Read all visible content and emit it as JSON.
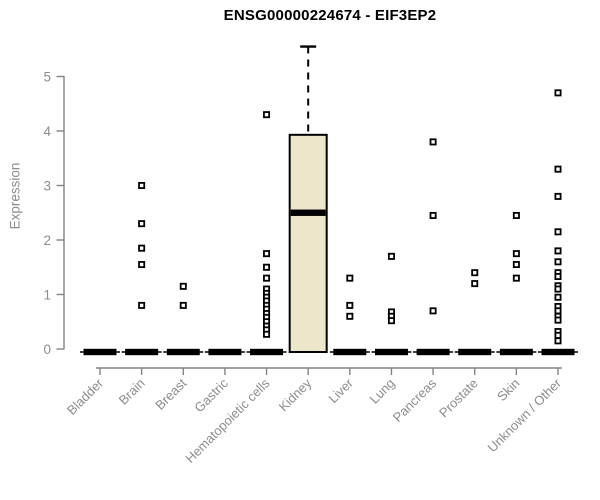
{
  "chart_data": {
    "type": "boxplot",
    "title": "ENSG00000224674 - EIF3EP2",
    "ylabel": "Expression",
    "ylim": [
      0,
      5.6
    ],
    "yticks": [
      0,
      1,
      2,
      3,
      4,
      5
    ],
    "grid": false,
    "legend": null,
    "categories": [
      "Bladder",
      "Brain",
      "Breast",
      "Gastric",
      "Hematopoietic cells",
      "Kidney",
      "Liver",
      "Lung",
      "Pancreas",
      "Prostate",
      "Skin",
      "Unknown / Other"
    ],
    "boxes": [
      {
        "category": "Bladder",
        "q1": 0,
        "median": 0,
        "q3": 0,
        "whisker_low": 0,
        "whisker_high": 0,
        "outliers": []
      },
      {
        "category": "Brain",
        "q1": 0,
        "median": 0,
        "q3": 0,
        "whisker_low": 0,
        "whisker_high": 0,
        "outliers": [
          3.0,
          2.3,
          1.85,
          1.55,
          0.8
        ]
      },
      {
        "category": "Breast",
        "q1": 0,
        "median": 0,
        "q3": 0,
        "whisker_low": 0,
        "whisker_high": 0,
        "outliers": [
          1.15,
          0.8
        ]
      },
      {
        "category": "Gastric",
        "q1": 0,
        "median": 0,
        "q3": 0,
        "whisker_low": 0,
        "whisker_high": 0,
        "outliers": []
      },
      {
        "category": "Hematopoietic cells",
        "q1": 0,
        "median": 0,
        "q3": 0,
        "whisker_low": 0,
        "whisker_high": 0,
        "outliers": [
          4.3,
          1.75,
          1.5,
          1.3,
          1.1,
          1.02,
          0.95,
          0.88,
          0.8,
          0.73,
          0.65,
          0.58,
          0.5,
          0.42,
          0.35,
          0.27
        ]
      },
      {
        "category": "Kidney",
        "q1": 0,
        "median": 2.5,
        "q3": 3.93,
        "whisker_low": 0,
        "whisker_high": 5.55,
        "outliers": []
      },
      {
        "category": "Liver",
        "q1": 0,
        "median": 0,
        "q3": 0,
        "whisker_low": 0,
        "whisker_high": 0,
        "outliers": [
          1.3,
          0.8,
          0.6
        ]
      },
      {
        "category": "Lung",
        "q1": 0,
        "median": 0,
        "q3": 0,
        "whisker_low": 0,
        "whisker_high": 0,
        "outliers": [
          1.7,
          0.68,
          0.6,
          0.52
        ]
      },
      {
        "category": "Pancreas",
        "q1": 0,
        "median": 0,
        "q3": 0,
        "whisker_low": 0,
        "whisker_high": 0,
        "outliers": [
          3.8,
          2.45,
          0.7
        ]
      },
      {
        "category": "Prostate",
        "q1": 0,
        "median": 0,
        "q3": 0,
        "whisker_low": 0,
        "whisker_high": 0,
        "outliers": [
          1.4,
          1.2
        ]
      },
      {
        "category": "Skin",
        "q1": 0,
        "median": 0,
        "q3": 0,
        "whisker_low": 0,
        "whisker_high": 0,
        "outliers": [
          2.45,
          1.75,
          1.55,
          1.3
        ]
      },
      {
        "category": "Unknown / Other",
        "q1": 0,
        "median": 0,
        "q3": 0,
        "whisker_low": 0,
        "whisker_high": 0,
        "outliers": [
          4.7,
          3.3,
          2.8,
          2.15,
          1.8,
          1.6,
          1.4,
          1.33,
          1.16,
          1.1,
          0.95,
          0.78,
          0.7,
          0.6,
          0.53,
          0.32,
          0.25,
          0.15
        ]
      }
    ],
    "colors": {
      "box_fill": "#ece7cb",
      "box_border": "#000000",
      "median": "#000000",
      "point_border": "#000000",
      "point_fill": "#ffffff",
      "axis": "#828282",
      "tick_text": "#8c8c8c",
      "title": "#000000",
      "background": "#ffffff"
    }
  }
}
